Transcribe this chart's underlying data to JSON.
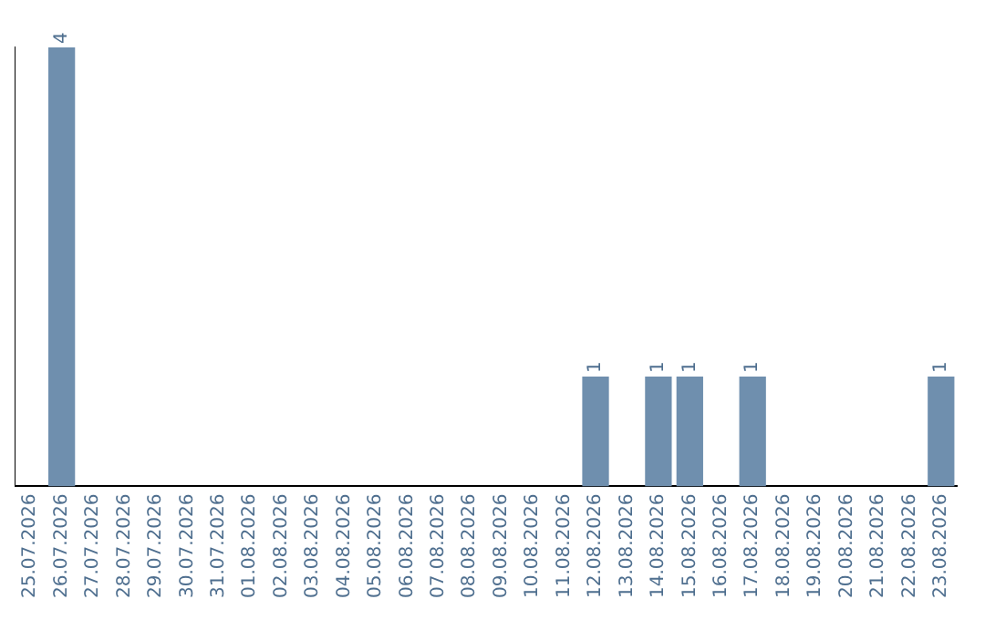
{
  "chart_data": {
    "type": "bar",
    "categories": [
      "25.07.2026",
      "26.07.2026",
      "27.07.2026",
      "28.07.2026",
      "29.07.2026",
      "30.07.2026",
      "31.07.2026",
      "01.08.2026",
      "02.08.2026",
      "03.08.2026",
      "04.08.2026",
      "05.08.2026",
      "06.08.2026",
      "07.08.2026",
      "08.08.2026",
      "09.08.2026",
      "10.08.2026",
      "11.08.2026",
      "12.08.2026",
      "13.08.2026",
      "14.08.2026",
      "15.08.2026",
      "16.08.2026",
      "17.08.2026",
      "18.08.2026",
      "19.08.2026",
      "20.08.2026",
      "21.08.2026",
      "22.08.2026",
      "23.08.2026"
    ],
    "values": [
      0,
      4,
      0,
      0,
      0,
      0,
      0,
      0,
      0,
      0,
      0,
      0,
      0,
      0,
      0,
      0,
      0,
      0,
      1,
      0,
      1,
      1,
      0,
      1,
      0,
      0,
      0,
      0,
      0,
      1
    ],
    "value_labels": [
      null,
      "4",
      null,
      null,
      null,
      null,
      null,
      null,
      null,
      null,
      null,
      null,
      null,
      null,
      null,
      null,
      null,
      null,
      "1",
      null,
      "1",
      "1",
      null,
      "1",
      null,
      null,
      null,
      null,
      null,
      "1"
    ],
    "color": "#6f8fae",
    "tick_labels": "x",
    "grid": false,
    "legend": false
  }
}
